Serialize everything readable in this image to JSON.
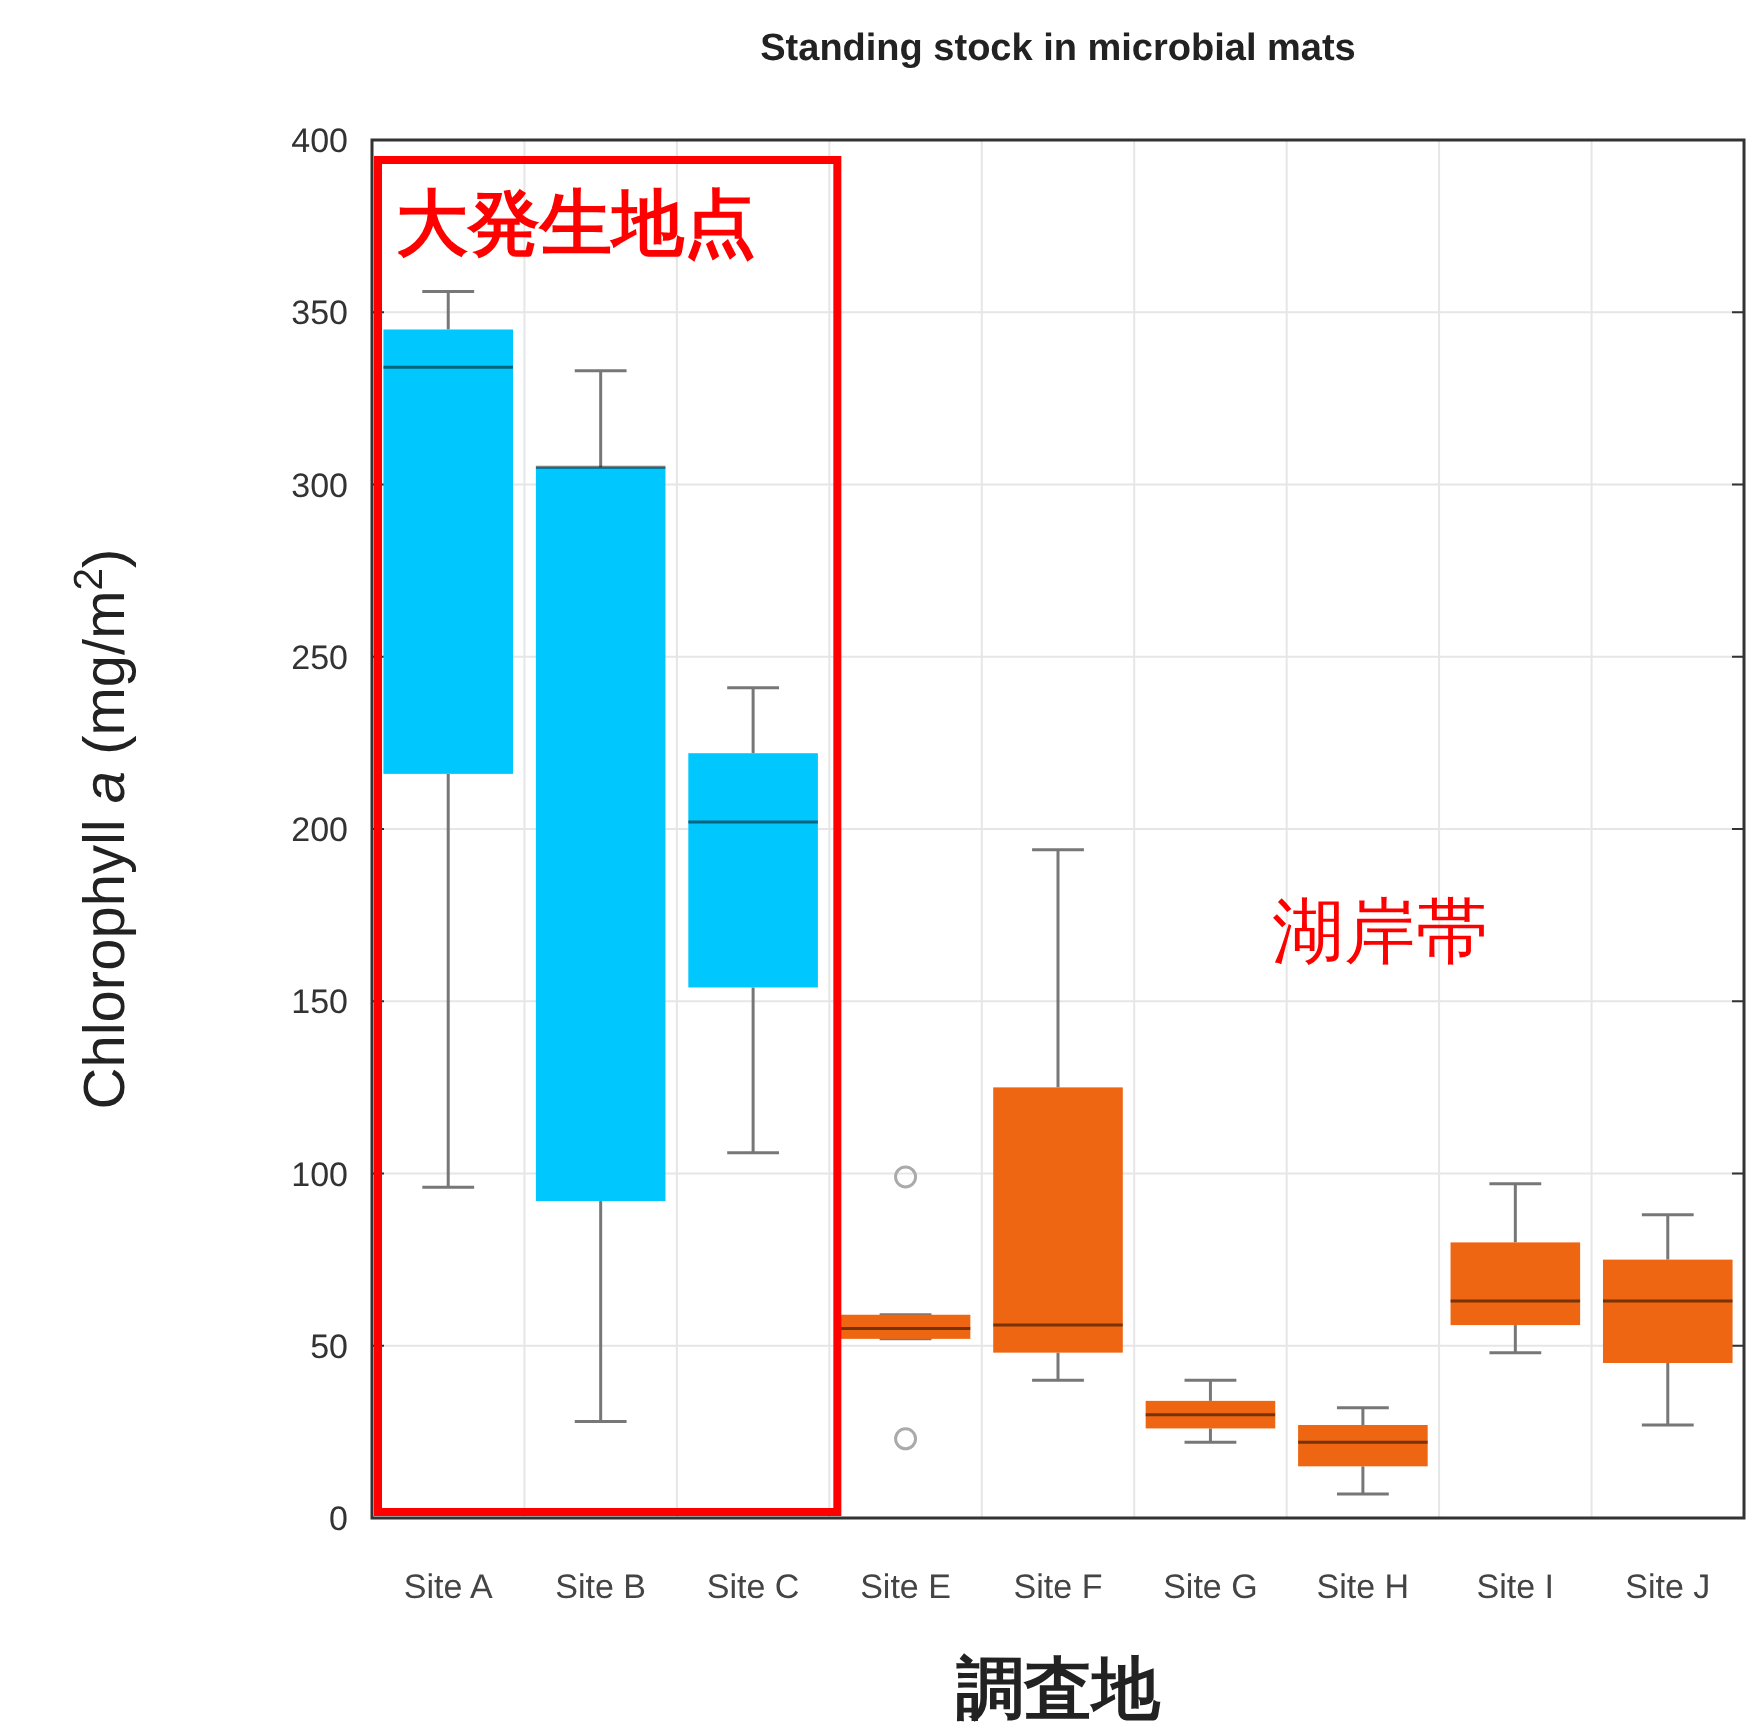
{
  "chart_data": {
    "type": "box",
    "title": "Standing stock in microbial mats",
    "xlabel": "調査地",
    "ylabel": "Chlorophyll *a* (mg/m$^{2}$)",
    "categories": [
      "Site A",
      "Site B",
      "Site C",
      "Site E",
      "Site F",
      "Site G",
      "Site H",
      "Site I",
      "Site J"
    ],
    "colors": [
      "#00c8ff",
      "#00c8ff",
      "#00c8ff",
      "#ee6611",
      "#ee6611",
      "#ee6611",
      "#ee6611",
      "#ee6611",
      "#ee6611"
    ],
    "boxes": [
      {
        "low": 96,
        "q1": 216,
        "median": 334,
        "q3": 345,
        "high": 356
      },
      {
        "low": 28,
        "q1": 92,
        "median": 305,
        "q3": 305,
        "high": 333
      },
      {
        "low": 106,
        "q1": 154,
        "median": 202,
        "q3": 222,
        "high": 241
      },
      {
        "low": 52,
        "q1": 52,
        "median": 55,
        "q3": 59,
        "high": 59,
        "outliers": [
          99,
          23
        ]
      },
      {
        "low": 40,
        "q1": 48,
        "median": 56,
        "q3": 125,
        "high": 194
      },
      {
        "low": 22,
        "q1": 26,
        "median": 30,
        "q3": 34,
        "high": 40
      },
      {
        "low": 7,
        "q1": 15,
        "median": 22,
        "q3": 27,
        "high": 32
      },
      {
        "low": 48,
        "q1": 56,
        "median": 63,
        "q3": 80,
        "high": 97
      },
      {
        "low": 27,
        "q1": 45,
        "median": 63,
        "q3": 75,
        "high": 88
      }
    ],
    "ylim": [
      0,
      400
    ],
    "yticks": [
      0,
      50,
      100,
      150,
      200,
      250,
      300,
      350,
      400
    ],
    "grid": true,
    "annotations": [
      "大発生地点",
      "湖岸帯"
    ]
  }
}
